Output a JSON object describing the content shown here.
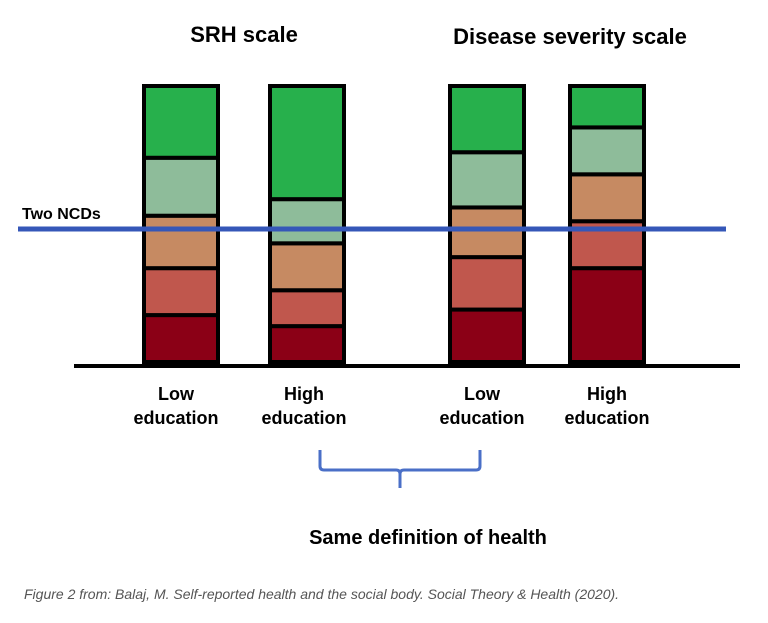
{
  "headings": {
    "left": "SRH scale",
    "right": "Disease severity scale"
  },
  "threshold_label": "Two NCDs",
  "groups": [
    {
      "line1": "Low",
      "line2": "education"
    },
    {
      "line1": "High",
      "line2": "education"
    },
    {
      "line1": "Low",
      "line2": "education"
    },
    {
      "line1": "High",
      "line2": "education"
    }
  ],
  "bottom_label": "Same definition of health",
  "caption": "Figure 2 from: Balaj, M. Self-reported health and the social body. Social Theory & Health (2020).",
  "colors": {
    "level_1": "#8b0016",
    "level_2": "#c0574d",
    "level_3": "#c68a62",
    "level_4": "#8ebc9a",
    "level_5": "#27b04c",
    "threshold_line": "#3557b8",
    "brace": "#4a6fc7"
  },
  "chart_data": {
    "type": "stacked-bar",
    "categories": [
      "Low education",
      "High education",
      "Low education",
      "High education"
    ],
    "panels": [
      "SRH scale",
      "Disease severity scale"
    ],
    "segments_bottom_to_top": [
      [
        0.17,
        0.17,
        0.19,
        0.21,
        0.26
      ],
      [
        0.13,
        0.13,
        0.17,
        0.16,
        0.41
      ],
      [
        0.19,
        0.19,
        0.18,
        0.2,
        0.24
      ],
      [
        0.34,
        0.17,
        0.17,
        0.17,
        0.15
      ]
    ],
    "threshold_fraction": 0.48
  }
}
